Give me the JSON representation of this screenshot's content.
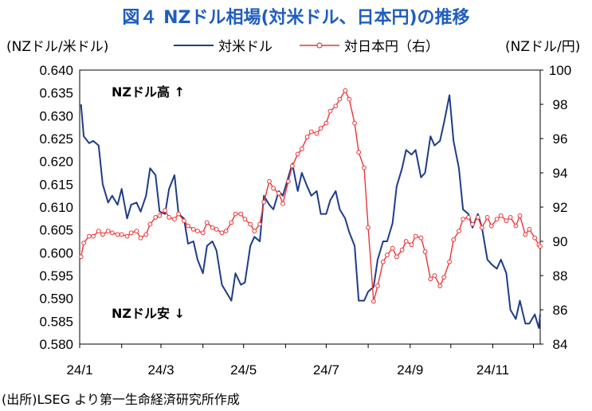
{
  "title": "図４ NZドル相場(対米ドル、日本円)の推移",
  "left_unit": "(NZドル/米ドル)",
  "right_unit": "(NZドル/円)",
  "source": "(出所)LSEG より第一生命経済研究所作成",
  "colors": {
    "usd": "#1f3c88",
    "jpy": "#ee3333",
    "title": "#1f5dbf"
  },
  "chart_data": {
    "type": "line",
    "x_tick_labels": [
      "24/1",
      "24/3",
      "24/5",
      "24/7",
      "24/9",
      "24/11"
    ],
    "x_range": [
      "2024-01-01",
      "2024-12-06"
    ],
    "y_left": {
      "min": 0.58,
      "max": 0.64,
      "step": 0.005,
      "ticks": [
        "0.580",
        "0.585",
        "0.590",
        "0.595",
        "0.600",
        "0.605",
        "0.610",
        "0.615",
        "0.620",
        "0.625",
        "0.630",
        "0.635",
        "0.640"
      ]
    },
    "y_right": {
      "min": 84,
      "max": 100,
      "step": 2,
      "ticks": [
        "84",
        "86",
        "88",
        "90",
        "92",
        "94",
        "96",
        "98",
        "100"
      ]
    },
    "annotations": {
      "high": "NZドル高",
      "low": "NZドル安"
    },
    "series": [
      {
        "name": "対米ドル",
        "axis": "left",
        "color": "#1f3c88",
        "points": [
          [
            "2024-01-02",
            0.6325
          ],
          [
            "2024-01-04",
            0.6255
          ],
          [
            "2024-01-08",
            0.624
          ],
          [
            "2024-01-11",
            0.6245
          ],
          [
            "2024-01-15",
            0.6235
          ],
          [
            "2024-01-18",
            0.615
          ],
          [
            "2024-01-22",
            0.611
          ],
          [
            "2024-01-25",
            0.6125
          ],
          [
            "2024-01-29",
            0.6105
          ],
          [
            "2024-02-01",
            0.614
          ],
          [
            "2024-02-05",
            0.6075
          ],
          [
            "2024-02-08",
            0.6105
          ],
          [
            "2024-02-12",
            0.611
          ],
          [
            "2024-02-15",
            0.609
          ],
          [
            "2024-02-19",
            0.6125
          ],
          [
            "2024-02-22",
            0.6185
          ],
          [
            "2024-02-26",
            0.617
          ],
          [
            "2024-02-29",
            0.609
          ],
          [
            "2024-03-04",
            0.6085
          ],
          [
            "2024-03-07",
            0.614
          ],
          [
            "2024-03-11",
            0.617
          ],
          [
            "2024-03-14",
            0.6085
          ],
          [
            "2024-03-18",
            0.6075
          ],
          [
            "2024-03-21",
            0.602
          ],
          [
            "2024-03-25",
            0.6025
          ],
          [
            "2024-03-28",
            0.5985
          ],
          [
            "2024-04-01",
            0.5955
          ],
          [
            "2024-04-04",
            0.6015
          ],
          [
            "2024-04-08",
            0.6025
          ],
          [
            "2024-04-11",
            0.6005
          ],
          [
            "2024-04-15",
            0.593
          ],
          [
            "2024-04-18",
            0.5915
          ],
          [
            "2024-04-22",
            0.5895
          ],
          [
            "2024-04-25",
            0.5955
          ],
          [
            "2024-04-29",
            0.593
          ],
          [
            "2024-05-02",
            0.5935
          ],
          [
            "2024-05-06",
            0.6015
          ],
          [
            "2024-05-09",
            0.6035
          ],
          [
            "2024-05-13",
            0.6025
          ],
          [
            "2024-05-16",
            0.6125
          ],
          [
            "2024-05-20",
            0.6105
          ],
          [
            "2024-05-23",
            0.6095
          ],
          [
            "2024-05-27",
            0.6135
          ],
          [
            "2024-05-30",
            0.6125
          ],
          [
            "2024-06-03",
            0.6165
          ],
          [
            "2024-06-06",
            0.6195
          ],
          [
            "2024-06-10",
            0.6135
          ],
          [
            "2024-06-13",
            0.6175
          ],
          [
            "2024-06-17",
            0.6145
          ],
          [
            "2024-06-20",
            0.6125
          ],
          [
            "2024-06-24",
            0.6135
          ],
          [
            "2024-06-27",
            0.6085
          ],
          [
            "2024-07-01",
            0.6085
          ],
          [
            "2024-07-04",
            0.6115
          ],
          [
            "2024-07-08",
            0.6135
          ],
          [
            "2024-07-11",
            0.6095
          ],
          [
            "2024-07-15",
            0.6075
          ],
          [
            "2024-07-18",
            0.6045
          ],
          [
            "2024-07-22",
            0.6015
          ],
          [
            "2024-07-25",
            0.5895
          ],
          [
            "2024-07-29",
            0.5895
          ],
          [
            "2024-08-01",
            0.5915
          ],
          [
            "2024-08-05",
            0.5925
          ],
          [
            "2024-08-08",
            0.5985
          ],
          [
            "2024-08-12",
            0.6025
          ],
          [
            "2024-08-15",
            0.6025
          ],
          [
            "2024-08-19",
            0.6065
          ],
          [
            "2024-08-22",
            0.6145
          ],
          [
            "2024-08-26",
            0.6185
          ],
          [
            "2024-08-29",
            0.6225
          ],
          [
            "2024-09-02",
            0.6215
          ],
          [
            "2024-09-05",
            0.6225
          ],
          [
            "2024-09-09",
            0.6165
          ],
          [
            "2024-09-12",
            0.6175
          ],
          [
            "2024-09-16",
            0.6255
          ],
          [
            "2024-09-19",
            0.6235
          ],
          [
            "2024-09-23",
            0.6245
          ],
          [
            "2024-09-26",
            0.6285
          ],
          [
            "2024-09-30",
            0.6345
          ],
          [
            "2024-10-03",
            0.6245
          ],
          [
            "2024-10-07",
            0.6185
          ],
          [
            "2024-10-10",
            0.6095
          ],
          [
            "2024-10-14",
            0.6085
          ],
          [
            "2024-10-17",
            0.6055
          ],
          [
            "2024-10-21",
            0.6085
          ],
          [
            "2024-10-24",
            0.6055
          ],
          [
            "2024-10-28",
            0.5985
          ],
          [
            "2024-10-31",
            0.5975
          ],
          [
            "2024-11-04",
            0.5965
          ],
          [
            "2024-11-07",
            0.5985
          ],
          [
            "2024-11-11",
            0.5955
          ],
          [
            "2024-11-14",
            0.5875
          ],
          [
            "2024-11-18",
            0.5855
          ],
          [
            "2024-11-21",
            0.5895
          ],
          [
            "2024-11-25",
            0.5845
          ],
          [
            "2024-11-28",
            0.5845
          ],
          [
            "2024-12-02",
            0.5865
          ],
          [
            "2024-12-05",
            0.5835
          ],
          [
            "2024-12-06",
            0.5865
          ]
        ]
      },
      {
        "name": "対日本円（右）",
        "axis": "right",
        "color": "#ee3333",
        "points": [
          [
            "2024-01-02",
            89.1
          ],
          [
            "2024-01-04",
            89.9
          ],
          [
            "2024-01-08",
            90.3
          ],
          [
            "2024-01-11",
            90.3
          ],
          [
            "2024-01-15",
            90.6
          ],
          [
            "2024-01-18",
            90.4
          ],
          [
            "2024-01-22",
            90.6
          ],
          [
            "2024-01-25",
            90.5
          ],
          [
            "2024-01-29",
            90.4
          ],
          [
            "2024-02-01",
            90.4
          ],
          [
            "2024-02-05",
            90.3
          ],
          [
            "2024-02-08",
            90.5
          ],
          [
            "2024-02-12",
            90.6
          ],
          [
            "2024-02-15",
            90.2
          ],
          [
            "2024-02-19",
            90.4
          ],
          [
            "2024-02-22",
            91.0
          ],
          [
            "2024-02-26",
            91.4
          ],
          [
            "2024-02-29",
            91.5
          ],
          [
            "2024-03-04",
            91.8
          ],
          [
            "2024-03-07",
            91.4
          ],
          [
            "2024-03-11",
            91.3
          ],
          [
            "2024-03-14",
            91.6
          ],
          [
            "2024-03-18",
            91.2
          ],
          [
            "2024-03-21",
            90.9
          ],
          [
            "2024-03-25",
            90.7
          ],
          [
            "2024-03-28",
            90.6
          ],
          [
            "2024-04-01",
            90.5
          ],
          [
            "2024-04-04",
            91.1
          ],
          [
            "2024-04-08",
            90.8
          ],
          [
            "2024-04-11",
            90.7
          ],
          [
            "2024-04-15",
            90.5
          ],
          [
            "2024-04-18",
            90.6
          ],
          [
            "2024-04-22",
            91.1
          ],
          [
            "2024-04-25",
            91.6
          ],
          [
            "2024-04-29",
            91.6
          ],
          [
            "2024-05-02",
            91.3
          ],
          [
            "2024-05-06",
            91.0
          ],
          [
            "2024-05-09",
            90.6
          ],
          [
            "2024-05-13",
            91.0
          ],
          [
            "2024-05-16",
            92.3
          ],
          [
            "2024-05-20",
            93.5
          ],
          [
            "2024-05-23",
            93.1
          ],
          [
            "2024-05-27",
            92.8
          ],
          [
            "2024-05-30",
            92.2
          ],
          [
            "2024-06-03",
            93.5
          ],
          [
            "2024-06-06",
            94.4
          ],
          [
            "2024-06-10",
            95.1
          ],
          [
            "2024-06-13",
            95.4
          ],
          [
            "2024-06-17",
            96.1
          ],
          [
            "2024-06-20",
            96.4
          ],
          [
            "2024-06-24",
            96.3
          ],
          [
            "2024-06-27",
            96.6
          ],
          [
            "2024-07-01",
            96.9
          ],
          [
            "2024-07-04",
            97.6
          ],
          [
            "2024-07-08",
            97.9
          ],
          [
            "2024-07-11",
            98.3
          ],
          [
            "2024-07-15",
            98.8
          ],
          [
            "2024-07-18",
            98.3
          ],
          [
            "2024-07-22",
            96.9
          ],
          [
            "2024-07-25",
            95.2
          ],
          [
            "2024-07-29",
            94.3
          ],
          [
            "2024-08-01",
            90.8
          ],
          [
            "2024-08-05",
            86.5
          ],
          [
            "2024-08-08",
            87.4
          ],
          [
            "2024-08-12",
            88.8
          ],
          [
            "2024-08-15",
            89.2
          ],
          [
            "2024-08-19",
            89.6
          ],
          [
            "2024-08-22",
            89.1
          ],
          [
            "2024-08-26",
            89.5
          ],
          [
            "2024-08-29",
            90.0
          ],
          [
            "2024-09-02",
            89.8
          ],
          [
            "2024-09-05",
            90.3
          ],
          [
            "2024-09-09",
            90.2
          ],
          [
            "2024-09-12",
            89.4
          ],
          [
            "2024-09-16",
            87.8
          ],
          [
            "2024-09-19",
            88.0
          ],
          [
            "2024-09-23",
            87.4
          ],
          [
            "2024-09-26",
            87.9
          ],
          [
            "2024-09-30",
            88.8
          ],
          [
            "2024-10-03",
            90.1
          ],
          [
            "2024-10-07",
            90.6
          ],
          [
            "2024-10-10",
            91.3
          ],
          [
            "2024-10-14",
            91.4
          ],
          [
            "2024-10-17",
            91.0
          ],
          [
            "2024-10-21",
            91.4
          ],
          [
            "2024-10-24",
            90.8
          ],
          [
            "2024-10-28",
            91.4
          ],
          [
            "2024-10-31",
            90.9
          ],
          [
            "2024-11-04",
            91.3
          ],
          [
            "2024-11-07",
            91.5
          ],
          [
            "2024-11-11",
            91.2
          ],
          [
            "2024-11-14",
            91.4
          ],
          [
            "2024-11-18",
            90.9
          ],
          [
            "2024-11-21",
            91.5
          ],
          [
            "2024-11-25",
            90.4
          ],
          [
            "2024-11-28",
            90.7
          ],
          [
            "2024-12-02",
            90.2
          ],
          [
            "2024-12-05",
            89.8
          ],
          [
            "2024-12-06",
            89.7
          ]
        ]
      }
    ]
  }
}
